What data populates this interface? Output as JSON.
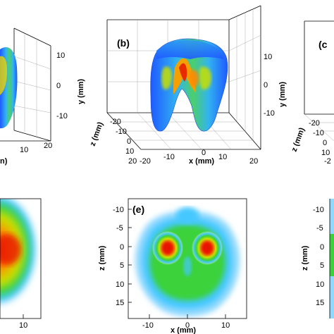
{
  "top_row": {
    "left_panel": {
      "y_ticks": [
        "10",
        "0",
        "-10"
      ],
      "y_label": "y (mm)",
      "x_ticks": [
        "10",
        "20"
      ],
      "x_label_fragment": "n)"
    },
    "middle_panel": {
      "panel_label": "(b)",
      "y_ticks": [
        "10",
        "0",
        "-10"
      ],
      "y_label": "y (mm)",
      "z_ticks": [
        "-20",
        "-10",
        "0",
        "10",
        "20"
      ],
      "z_label": "z (mm)",
      "x_ticks": [
        "-20",
        "-10",
        "0",
        "10",
        "20"
      ],
      "x_label": "x (mm)"
    },
    "right_panel": {
      "panel_label": "(c"
    }
  },
  "bottom_row": {
    "left_panel": {
      "x_ticks": [
        "10"
      ]
    },
    "middle_panel": {
      "panel_label": "(e)",
      "z_ticks": [
        "-10",
        "-5",
        "0",
        "5",
        "10",
        "15"
      ],
      "z_label": "z (mm)",
      "x_ticks": [
        "-10",
        "0",
        "10"
      ],
      "x_label": "x (mm)"
    },
    "right_panel": {
      "z_ticks": [
        "-10",
        "-5",
        "0",
        "5",
        "10",
        "15"
      ],
      "z_label": "z (mm)"
    }
  },
  "colors": {
    "blue": "#1e5aff",
    "cyan": "#44c8ff",
    "green": "#3ad23a",
    "yellow": "#f4e000",
    "orange": "#ff8a00",
    "red": "#e81200"
  }
}
